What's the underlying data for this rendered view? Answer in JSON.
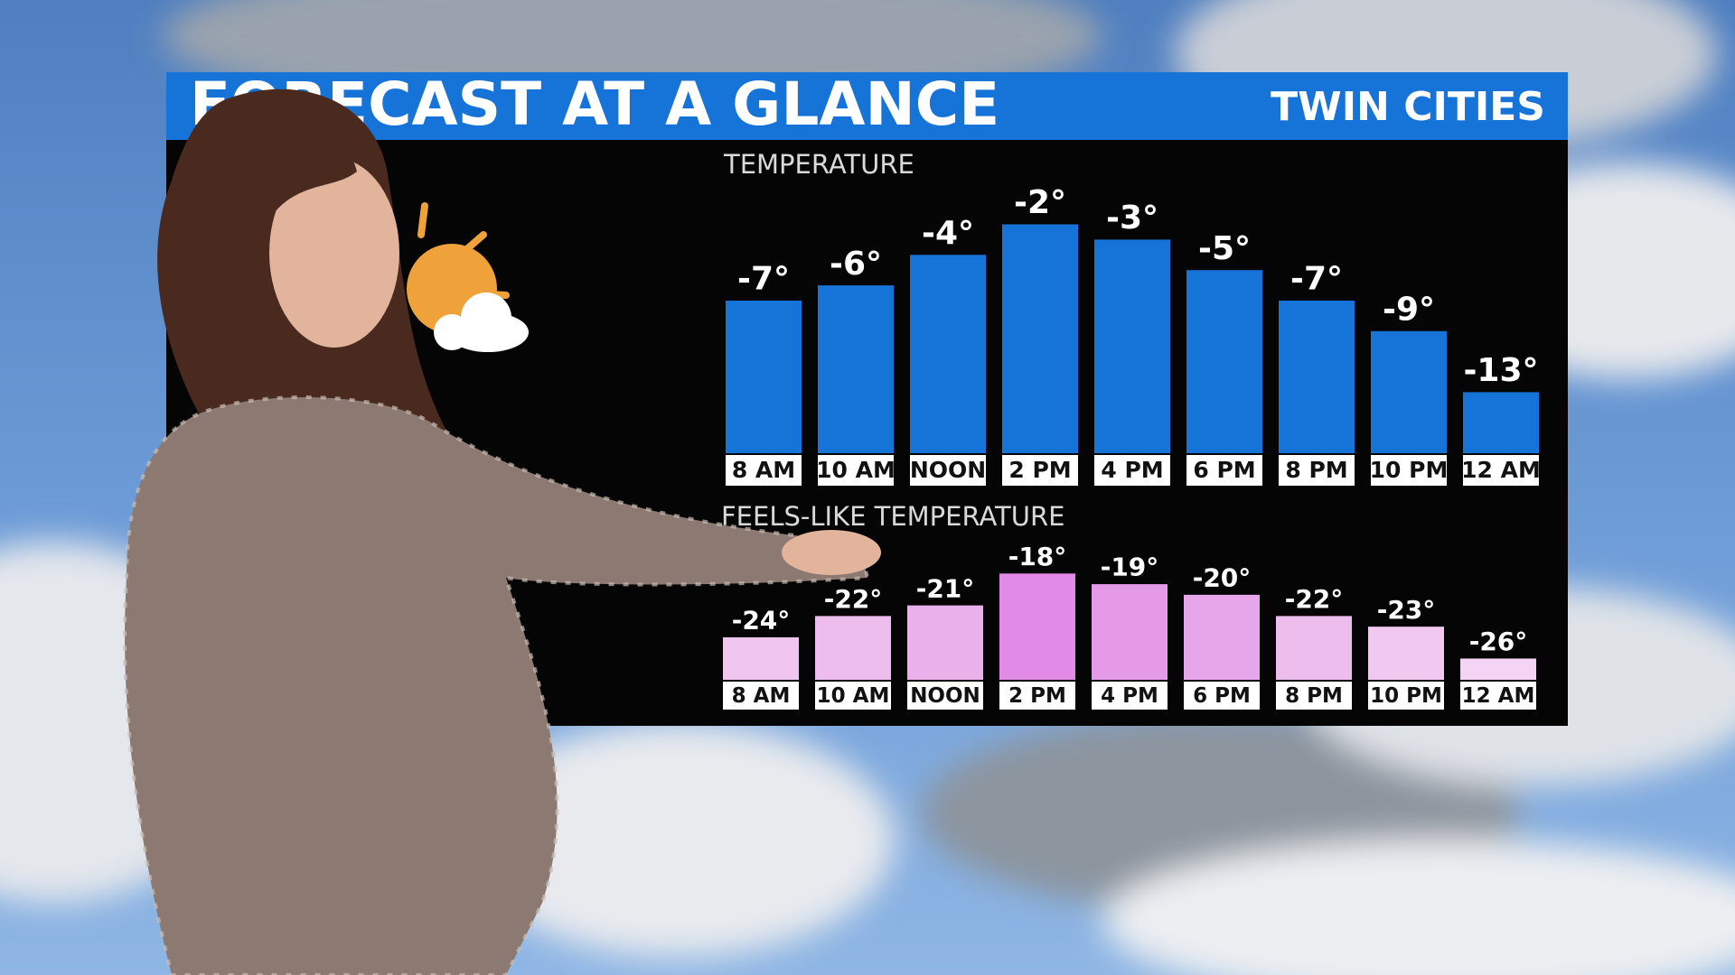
{
  "header": {
    "title": "FORECAST AT A GLANCE",
    "location": "TWIN CITIES"
  },
  "chart_data": [
    {
      "type": "bar",
      "title": "TEMPERATURE",
      "categories": [
        "8 AM",
        "10 AM",
        "NOON",
        "2 PM",
        "4 PM",
        "6 PM",
        "8 PM",
        "10 PM",
        "12 AM"
      ],
      "values": [
        -7,
        -6,
        -4,
        -2,
        -3,
        -5,
        -7,
        -9,
        -13
      ],
      "value_labels": [
        "-7°",
        "-6°",
        "-4°",
        "-2°",
        "-3°",
        "-5°",
        "-7°",
        "-9°",
        "-13°"
      ],
      "color": "#1673d8",
      "ylim": [
        -17,
        3
      ]
    },
    {
      "type": "bar",
      "title": "FEELS-LIKE TEMPERATURE",
      "categories": [
        "8 AM",
        "10 AM",
        "NOON",
        "2 PM",
        "4 PM",
        "6 PM",
        "8 PM",
        "10 PM",
        "12 AM"
      ],
      "values": [
        -24,
        -22,
        -21,
        -18,
        -19,
        -20,
        -22,
        -23,
        -26
      ],
      "value_labels": [
        "-24°",
        "-22°",
        "-21°",
        "-18°",
        "-19°",
        "-20°",
        "-22°",
        "-23°",
        "-26°"
      ],
      "colors": [
        "#f0c6f0",
        "#edbdee",
        "#eab0ea",
        "#e18ae6",
        "#e59ae8",
        "#e7a6e9",
        "#edbdee",
        "#f0c8f0",
        "#f4d3f4"
      ],
      "ylim": [
        -28,
        -15
      ]
    }
  ]
}
